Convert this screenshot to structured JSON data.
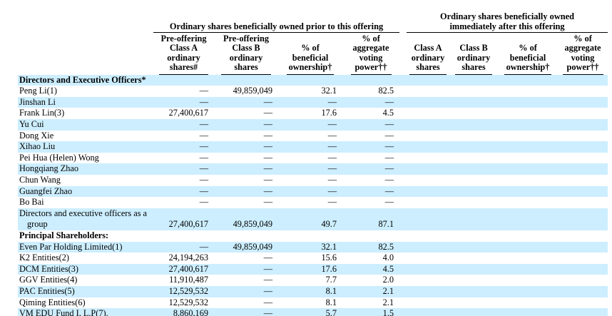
{
  "table": {
    "group_headers": [
      "Ordinary shares beneficially owned prior to this offering",
      "Ordinary shares beneficially owned\nimmediately after this offering"
    ],
    "column_headers": [
      "Pre-offering\nClass A\nordinary\nshares#",
      "Pre-offering\nClass B\nordinary\nshares",
      "% of\nbeneficial\nownership†",
      "% of\naggregate\nvoting\npower††",
      "Class A\nordinary\nshares",
      "Class B\nordinary\nshares",
      "% of\nbeneficial\nownership†",
      "% of\naggregate\nvoting\npower††"
    ],
    "shade_color": "#CCEEFF",
    "rows": [
      {
        "name": "Directors and Executive Officers*",
        "bold": true,
        "shaded": true,
        "cells": [
          "",
          "",
          "",
          "",
          "",
          "",
          "",
          ""
        ]
      },
      {
        "name": "Peng Li(1)",
        "shaded": false,
        "cells": [
          "—",
          "49,859,049",
          "32.1",
          "82.5",
          "",
          "",
          "",
          ""
        ]
      },
      {
        "name": "Jinshan Li",
        "shaded": true,
        "cells": [
          "—",
          "—",
          "—",
          "—",
          "",
          "",
          "",
          ""
        ]
      },
      {
        "name": "Frank Lin(3)",
        "shaded": false,
        "cells": [
          "27,400,617",
          "—",
          "17.6",
          "4.5",
          "",
          "",
          "",
          ""
        ]
      },
      {
        "name": "Yu Cui",
        "shaded": true,
        "cells": [
          "—",
          "—",
          "—",
          "—",
          "",
          "",
          "",
          ""
        ]
      },
      {
        "name": "Dong Xie",
        "shaded": false,
        "cells": [
          "—",
          "—",
          "—",
          "—",
          "",
          "",
          "",
          ""
        ]
      },
      {
        "name": "Xihao Liu",
        "shaded": true,
        "cells": [
          "—",
          "—",
          "—",
          "—",
          "",
          "",
          "",
          ""
        ]
      },
      {
        "name": "Pei Hua (Helen) Wong",
        "shaded": false,
        "cells": [
          "—",
          "—",
          "—",
          "—",
          "",
          "",
          "",
          ""
        ]
      },
      {
        "name": "Hongqiang Zhao",
        "shaded": true,
        "cells": [
          "—",
          "—",
          "—",
          "—",
          "",
          "",
          "",
          ""
        ]
      },
      {
        "name": "Chun Wang",
        "shaded": false,
        "cells": [
          "—",
          "—",
          "—",
          "—",
          "",
          "",
          "",
          ""
        ]
      },
      {
        "name": "Guangfei Zhao",
        "shaded": true,
        "cells": [
          "—",
          "—",
          "—",
          "—",
          "",
          "",
          "",
          ""
        ]
      },
      {
        "name": "Bo Bai",
        "shaded": false,
        "cells": [
          "—",
          "—",
          "—",
          "—",
          "",
          "",
          "",
          ""
        ]
      },
      {
        "name": "Directors and executive officers as a",
        "name2": "group",
        "shaded": true,
        "cells": [
          "27,400,617",
          "49,859,049",
          "49.7",
          "87.1",
          "",
          "",
          "",
          ""
        ]
      },
      {
        "name": "Principal Shareholders:",
        "bold": true,
        "shaded": false,
        "cells": [
          "",
          "",
          "",
          "",
          "",
          "",
          "",
          ""
        ]
      },
      {
        "name": "Even Par Holding Limited(1)",
        "shaded": true,
        "cells": [
          "—",
          "49,859,049",
          "32.1",
          "82.5",
          "",
          "",
          "",
          ""
        ]
      },
      {
        "name": "K2 Entities(2)",
        "shaded": false,
        "cells": [
          "24,194,263",
          "—",
          "15.6",
          "4.0",
          "",
          "",
          "",
          ""
        ]
      },
      {
        "name": "DCM Entities(3)",
        "shaded": true,
        "cells": [
          "27,400,617",
          "—",
          "17.6",
          "4.5",
          "",
          "",
          "",
          ""
        ]
      },
      {
        "name": "GGV Entities(4)",
        "shaded": false,
        "cells": [
          "11,910,487",
          "—",
          "7.7",
          "2.0",
          "",
          "",
          "",
          ""
        ]
      },
      {
        "name": "PAC Entities(5)",
        "shaded": true,
        "cells": [
          "12,529,532",
          "—",
          "8.1",
          "2.1",
          "",
          "",
          "",
          ""
        ]
      },
      {
        "name": "Qiming Entities(6)",
        "shaded": false,
        "cells": [
          "12,529,532",
          "—",
          "8.1",
          "2.1",
          "",
          "",
          "",
          ""
        ]
      },
      {
        "name": "VM EDU Fund I, L.P(7).",
        "shaded": true,
        "cells": [
          "8,860,169",
          "—",
          "5.7",
          "1.5",
          "",
          "",
          "",
          ""
        ]
      }
    ]
  }
}
